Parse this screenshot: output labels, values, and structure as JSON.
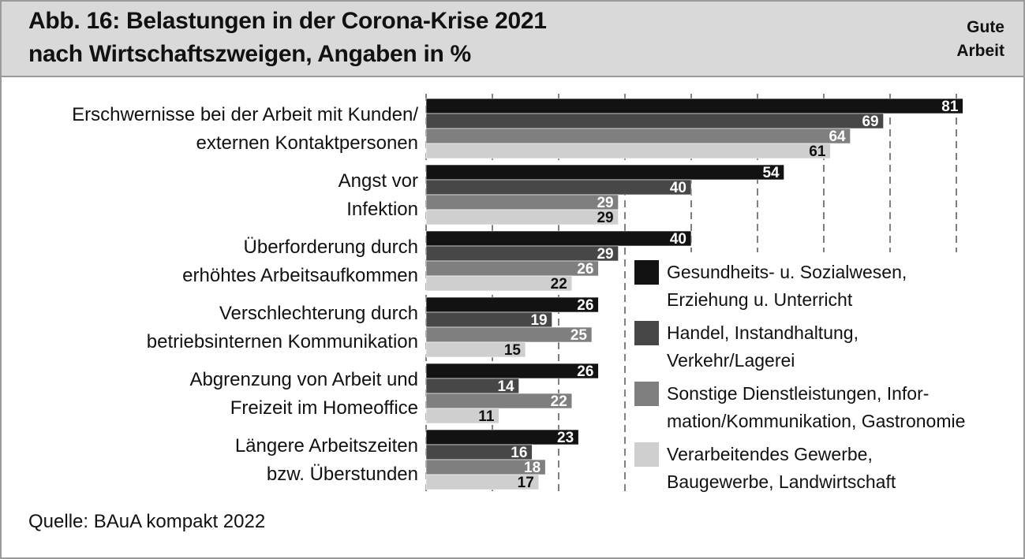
{
  "header": {
    "title_line1": "Abb. 16: Belastungen in der Corona-Krise 2021",
    "title_line2": "nach Wirtschaftszweigen, Angaben in %",
    "brand_line1": "Gute",
    "brand_line2": "Arbeit"
  },
  "chart_data": {
    "type": "bar",
    "orientation": "horizontal",
    "categories": [
      [
        "Erschwernisse bei der Arbeit mit Kunden/",
        "externen Kontaktpersonen"
      ],
      [
        "Angst vor",
        "Infektion"
      ],
      [
        "Überforderung durch",
        "erhöhtes Arbeitsaufkommen"
      ],
      [
        "Verschlechterung durch",
        "betriebsinternen Kommunikation"
      ],
      [
        "Abgrenzung von Arbeit und",
        "Freizeit im Homeoffice"
      ],
      [
        "Längere Arbeitszeiten",
        "bzw. Überstunden"
      ]
    ],
    "series": [
      {
        "name": [
          "Gesundheits- u. Sozialwesen,",
          "Erziehung u. Unterricht"
        ],
        "color": "#121212",
        "label_color": "#ffffff",
        "values": [
          81,
          54,
          40,
          26,
          26,
          23
        ]
      },
      {
        "name": [
          "Handel, Instandhaltung,",
          "Verkehr/Lagerei"
        ],
        "color": "#474747",
        "label_color": "#ffffff",
        "values": [
          69,
          40,
          29,
          19,
          14,
          16
        ]
      },
      {
        "name": [
          "Sonstige Dienstleistungen, Infor-",
          "mation/Kommunikation, Gastronomie"
        ],
        "color": "#7f7f7f",
        "label_color": "#ffffff",
        "values": [
          64,
          29,
          26,
          25,
          22,
          18
        ]
      },
      {
        "name": [
          "Verarbeitendes Gewerbe,",
          "Baugewerbe, Landwirtschaft"
        ],
        "color": "#cfcfcf",
        "label_color": "#111111",
        "values": [
          61,
          29,
          22,
          15,
          11,
          17
        ]
      }
    ],
    "xlim": [
      0,
      80
    ],
    "gridlines": [
      10,
      20,
      30,
      40,
      50,
      60,
      70,
      80
    ],
    "grid_style": "dashed",
    "legend_position": "lower-right"
  },
  "source": "Quelle: BAuA kompakt 2022"
}
